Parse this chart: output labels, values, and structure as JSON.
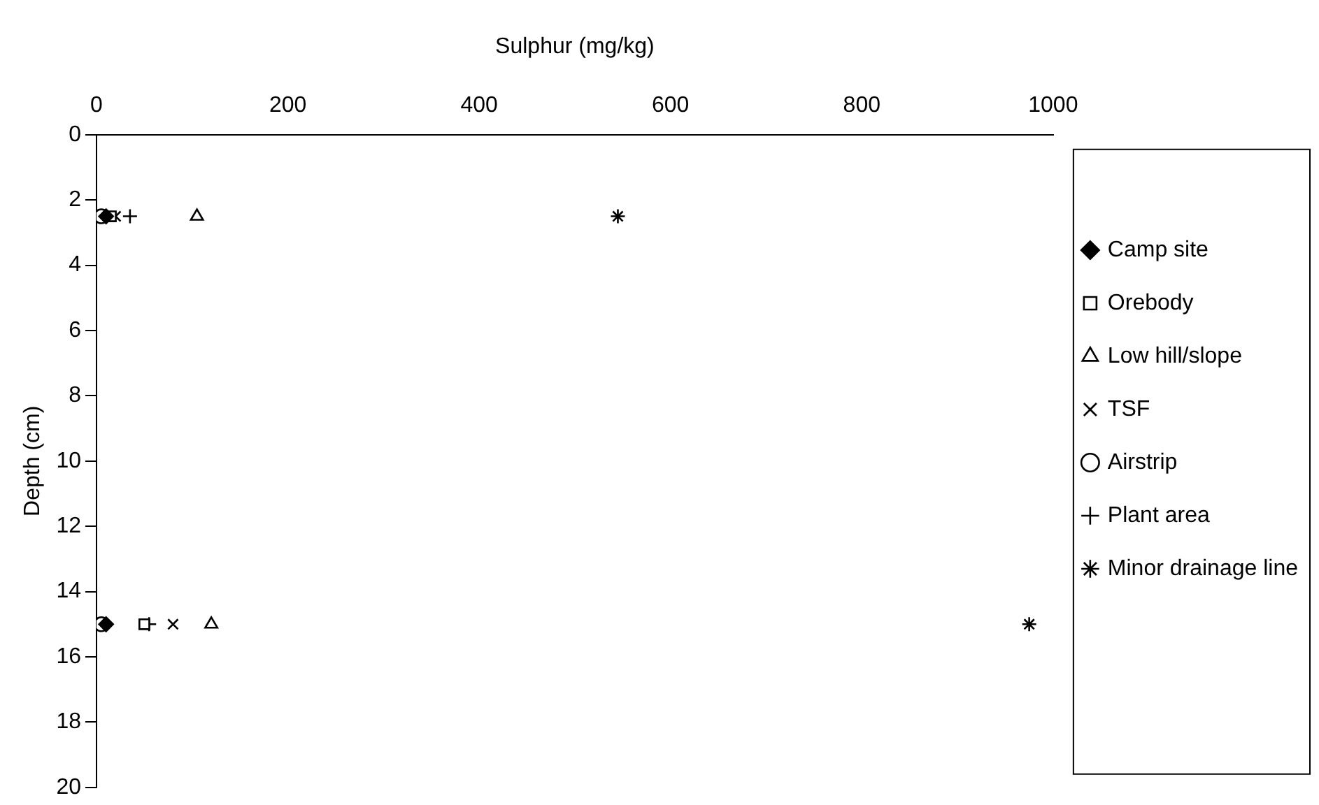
{
  "chart_data": {
    "type": "scatter",
    "xlabel": "Sulphur (mg/kg)",
    "ylabel": "Depth (cm)",
    "xlim": [
      0,
      1000
    ],
    "xticks": [
      0,
      200,
      400,
      600,
      800,
      1000
    ],
    "ylim": [
      20,
      0
    ],
    "yticks": [
      0,
      2,
      4,
      6,
      8,
      10,
      12,
      14,
      16,
      18,
      20
    ],
    "grid": false,
    "legend": "right",
    "series": [
      {
        "name": "Camp site",
        "color": "#000000",
        "marker": "diamond",
        "x": [
          10,
          10
        ],
        "values": [
          2.5,
          15
        ]
      },
      {
        "name": "Orebody",
        "color": "#000000",
        "marker": "square",
        "x": [
          15,
          50
        ],
        "values": [
          2.5,
          15
        ]
      },
      {
        "name": "Low hill/slope",
        "color": "#000000",
        "marker": "triangle",
        "x": [
          105,
          120
        ],
        "values": [
          2.5,
          15
        ]
      },
      {
        "name": "TSF",
        "color": "#000000",
        "marker": "cross",
        "x": [
          20,
          80
        ],
        "values": [
          2.5,
          15
        ]
      },
      {
        "name": "Airstrip",
        "color": "#000000",
        "marker": "circle",
        "x": [
          5,
          5
        ],
        "values": [
          2.5,
          15
        ]
      },
      {
        "name": "Plant area",
        "color": "#000000",
        "marker": "plus",
        "x": [
          35,
          55
        ],
        "values": [
          2.5,
          15
        ]
      },
      {
        "name": "Minor drainage line",
        "color": "#000000",
        "x": [
          545,
          975
        ],
        "values": [
          2.5,
          15
        ]
      }
    ]
  }
}
